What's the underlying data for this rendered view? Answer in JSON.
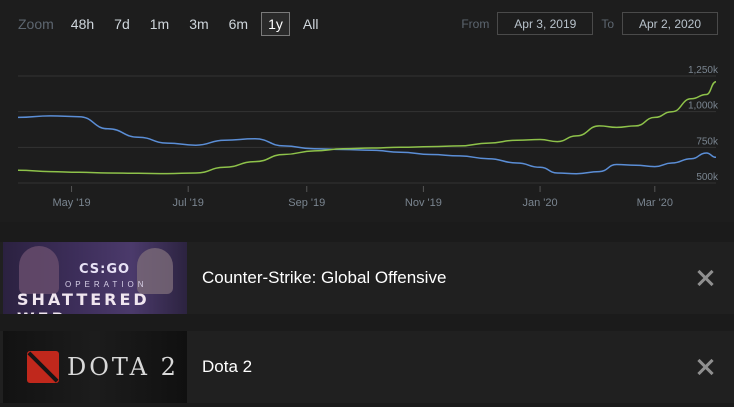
{
  "zoom": {
    "label": "Zoom",
    "options": [
      "48h",
      "7d",
      "1m",
      "3m",
      "6m",
      "1y",
      "All"
    ],
    "selected": "1y"
  },
  "range": {
    "from_label": "From",
    "from_value": "Apr 3, 2019",
    "to_label": "To",
    "to_value": "Apr 2, 2020"
  },
  "chart_data": {
    "type": "line",
    "x_ticks": [
      "May '19",
      "Jul '19",
      "Sep '19",
      "Nov '19",
      "Jan '20",
      "Mar '20"
    ],
    "y_ticks": [
      "500k",
      "750k",
      "1,000k",
      "1,250k"
    ],
    "ylim": [
      500000,
      1250000
    ],
    "grid": true,
    "series": [
      {
        "color": "#5b8ed6",
        "x": [
          "2019-04-03",
          "2019-04-20",
          "2019-05-05",
          "2019-05-20",
          "2019-06-05",
          "2019-06-20",
          "2019-07-05",
          "2019-07-20",
          "2019-08-05",
          "2019-08-20",
          "2019-09-05",
          "2019-09-20",
          "2019-10-05",
          "2019-10-20",
          "2019-11-05",
          "2019-11-20",
          "2019-12-05",
          "2019-12-20",
          "2020-01-01",
          "2020-01-10",
          "2020-01-20",
          "2020-02-01",
          "2020-02-10",
          "2020-02-20",
          "2020-03-01",
          "2020-03-10",
          "2020-03-20",
          "2020-03-28",
          "2020-04-02"
        ],
        "values": [
          960000,
          970000,
          965000,
          880000,
          820000,
          780000,
          765000,
          800000,
          810000,
          760000,
          740000,
          735000,
          730000,
          715000,
          700000,
          690000,
          670000,
          640000,
          610000,
          570000,
          565000,
          580000,
          630000,
          625000,
          615000,
          640000,
          670000,
          710000,
          680000
        ]
      },
      {
        "color": "#8ec24a",
        "x": [
          "2019-04-03",
          "2019-04-20",
          "2019-05-05",
          "2019-05-20",
          "2019-06-05",
          "2019-06-20",
          "2019-07-05",
          "2019-07-20",
          "2019-08-05",
          "2019-08-20",
          "2019-09-05",
          "2019-09-20",
          "2019-10-05",
          "2019-10-20",
          "2019-11-05",
          "2019-11-20",
          "2019-12-05",
          "2019-12-20",
          "2020-01-01",
          "2020-01-10",
          "2020-01-20",
          "2020-02-01",
          "2020-02-10",
          "2020-02-20",
          "2020-03-01",
          "2020-03-10",
          "2020-03-20",
          "2020-03-28",
          "2020-04-02"
        ],
        "values": [
          590000,
          580000,
          575000,
          570000,
          568000,
          566000,
          570000,
          610000,
          650000,
          700000,
          725000,
          740000,
          745000,
          750000,
          755000,
          760000,
          780000,
          800000,
          805000,
          790000,
          830000,
          900000,
          890000,
          900000,
          960000,
          1000000,
          1090000,
          1120000,
          1210000
        ]
      }
    ]
  },
  "games": [
    {
      "name": "Counter-Strike: Global Offensive",
      "capsule_top": "CS:GO",
      "capsule_mid": "OPERATION",
      "capsule_bottom": "SHATTERED WEB",
      "close_icon": "close-icon"
    },
    {
      "name": "Dota 2",
      "capsule_text": "DOTA 2",
      "close_icon": "close-icon"
    }
  ]
}
